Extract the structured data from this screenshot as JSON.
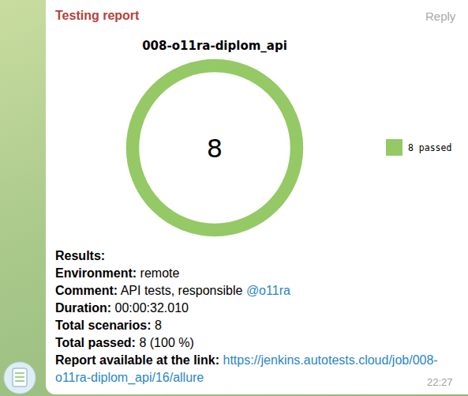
{
  "chart_data": {
    "type": "donut",
    "title": "008-o11ra-diplom_api",
    "categories": [
      "8 passed"
    ],
    "values": [
      8
    ],
    "colors": [
      "#94c966"
    ],
    "total": 8,
    "legend": "right"
  },
  "message": {
    "sender": "Testing report",
    "reply": "Reply",
    "time": "22:27",
    "results_heading": "Results:",
    "fields": [
      {
        "label": "Environment:",
        "value": "remote"
      },
      {
        "label": "Comment:",
        "value": "API tests, responsible",
        "mention": "@o11ra"
      },
      {
        "label": "Duration:",
        "value": "00:00:32.010"
      },
      {
        "label": "Total scenarios:",
        "value": "8"
      },
      {
        "label": "Total passed:",
        "value": "8 (100 %)"
      },
      {
        "label": "Report available at the link:",
        "link": "https://jenkins.autotests.cloud/job/008-o11ra-diplom_api/16/allure"
      }
    ]
  }
}
